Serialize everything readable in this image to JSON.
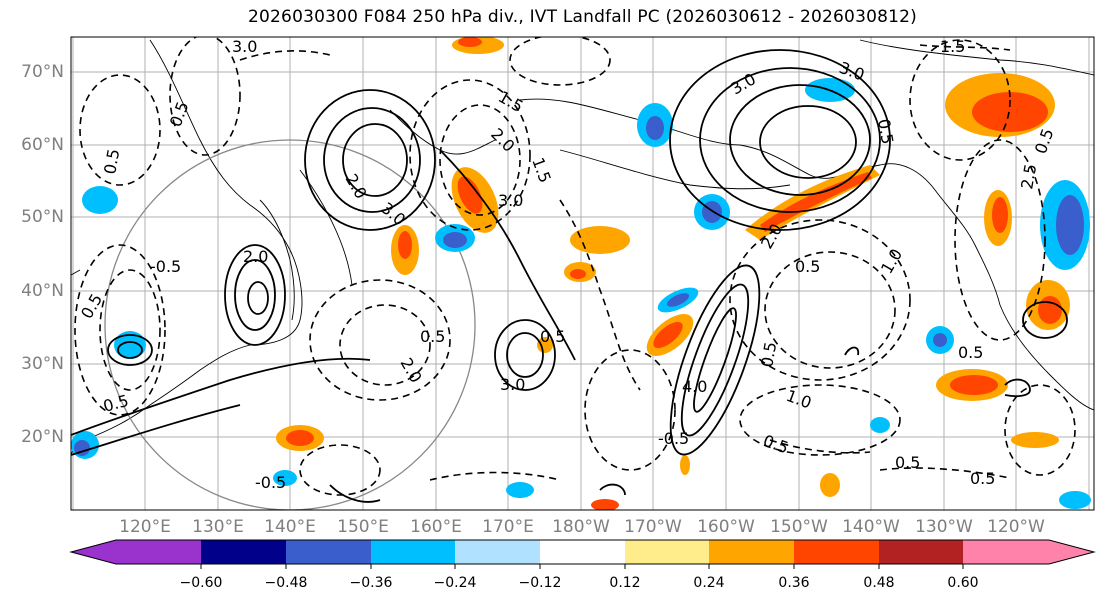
{
  "title": "2026030300 F084 250 hPa div., IVT Landfall PC (2026030612 - 2026030812)",
  "map": {
    "lat_labels": [
      {
        "label": "70°N",
        "lat": 70
      },
      {
        "label": "60°N",
        "lat": 60
      },
      {
        "label": "50°N",
        "lat": 50
      },
      {
        "label": "40°N",
        "lat": 40
      },
      {
        "label": "30°N",
        "lat": 30
      },
      {
        "label": "20°N",
        "lat": 20
      }
    ],
    "lon_labels": [
      "120°E",
      "130°E",
      "140°E",
      "150°E",
      "160°E",
      "170°E",
      "180°W",
      "170°W",
      "160°W",
      "150°W",
      "140°W",
      "130°W",
      "120°W"
    ],
    "contour_labels": [
      "3.0",
      "1.5",
      "0.5",
      "0.5",
      "2.0",
      "3.0",
      "2.0",
      "1.5",
      "3.0",
      "1.5",
      "-0.5",
      "2.0",
      "3.0",
      "0.5",
      "3.0",
      "2.0",
      "0.5",
      "1.0",
      "2.5",
      "0.5",
      "0.5",
      "0.5",
      "2.0",
      "0.5",
      "3.0",
      "0.5",
      "-0.5",
      "4.0",
      "0.5",
      "1.0",
      "0.5",
      "-0.5",
      "0.5",
      "0.5",
      "0.5"
    ]
  },
  "colorbar": {
    "colors": [
      "#9a32cd",
      "#00008b",
      "#3a5fcd",
      "#00bfff",
      "#b0e2ff",
      "#ffffff",
      "#ffec8b",
      "#ffa500",
      "#ff4500",
      "#b22222",
      "#ff82ab"
    ],
    "ticks": [
      "−0.60",
      "−0.48",
      "−0.36",
      "−0.24",
      "−0.12",
      "0.12",
      "0.24",
      "0.36",
      "0.48",
      "0.60"
    ]
  }
}
